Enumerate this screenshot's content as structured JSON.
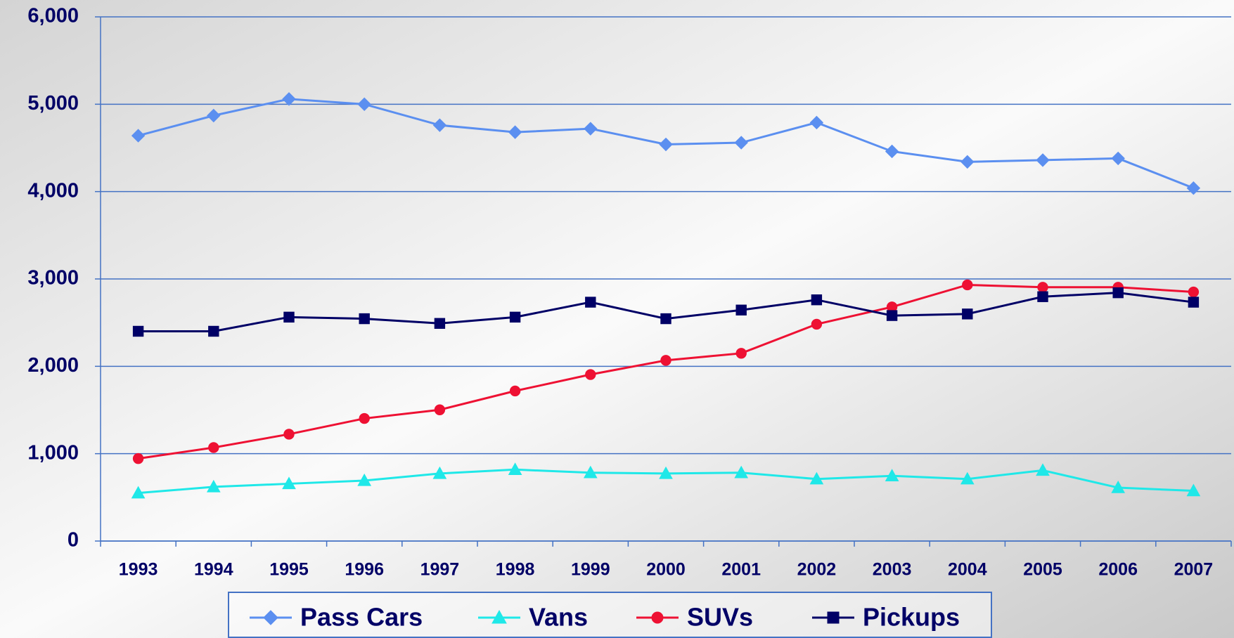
{
  "chart_data": {
    "type": "line",
    "categories": [
      "1993",
      "1994",
      "1995",
      "1996",
      "1997",
      "1998",
      "1999",
      "2000",
      "2001",
      "2002",
      "2003",
      "2004",
      "2005",
      "2006",
      "2007"
    ],
    "series": [
      {
        "name": "Pass Cars",
        "color": "#5b8ff0",
        "marker": "diamond",
        "values": [
          4640,
          4870,
          5060,
          5000,
          4760,
          4680,
          4720,
          4540,
          4560,
          4790,
          4460,
          4340,
          4360,
          4380,
          4040
        ]
      },
      {
        "name": "Vans",
        "color": "#1fe8e8",
        "marker": "triangle",
        "values": [
          550,
          620,
          656,
          692,
          773,
          818,
          782,
          773,
          782,
          710,
          746,
          710,
          809,
          611,
          575
        ]
      },
      {
        "name": "SUVs",
        "color": "#ee1133",
        "marker": "circle",
        "values": [
          944,
          1070,
          1223,
          1403,
          1502,
          1718,
          1906,
          2068,
          2149,
          2482,
          2680,
          2932,
          2905,
          2905,
          2851
        ]
      },
      {
        "name": "Pickups",
        "color": "#000066",
        "marker": "square",
        "values": [
          2401,
          2401,
          2563,
          2545,
          2491,
          2563,
          2734,
          2545,
          2644,
          2761,
          2581,
          2599,
          2797,
          2842,
          2734
        ]
      }
    ],
    "ylim": [
      0,
      6000
    ],
    "yticks": [
      0,
      {
        "value": 1000,
        "label": "1,000"
      },
      {
        "value": 2000,
        "label": "2,000"
      },
      {
        "value": 3000,
        "label": "3,000"
      },
      {
        "value": 4000,
        "label": "4,000"
      },
      {
        "value": 5000,
        "label": "5,000"
      },
      {
        "value": 6000,
        "label": "6,000"
      }
    ],
    "grid": true,
    "legend": "bottom"
  }
}
